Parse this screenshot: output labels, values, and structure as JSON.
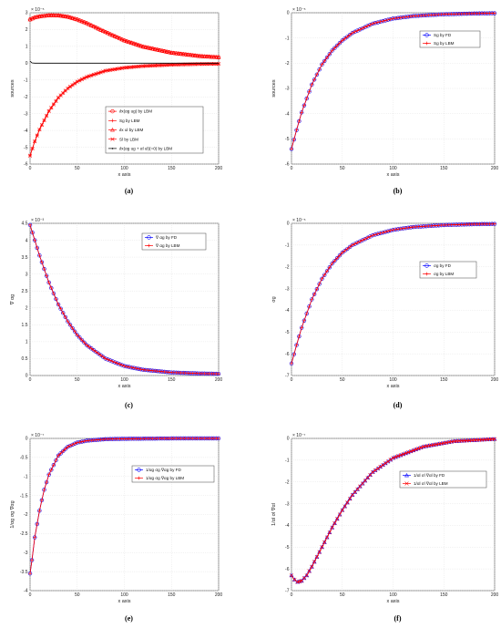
{
  "chart_data": [
    {
      "id": "a",
      "type": "line",
      "caption": "(a)",
      "xlabel": "x axis",
      "ylabel": "sources",
      "exponent": "× 10⁻⁵",
      "xlim": [
        0,
        200
      ],
      "ylim": [
        -6,
        3
      ],
      "xticks": [
        0,
        50,
        100,
        150,
        200
      ],
      "yticks": [
        -6,
        -5,
        -4,
        -3,
        -2,
        -1,
        0,
        1,
        2,
        3
      ],
      "series": [
        {
          "name": "∂x(αg ug) by LBM",
          "color": "#ff0000",
          "marker": "circle",
          "x": [
            0,
            5,
            10,
            20,
            30,
            40,
            50,
            60,
            80,
            100,
            120,
            150,
            180,
            200
          ],
          "y": [
            2.6,
            2.72,
            2.78,
            2.85,
            2.84,
            2.76,
            2.6,
            2.38,
            1.85,
            1.35,
            0.98,
            0.62,
            0.42,
            0.35
          ]
        },
        {
          "name": "Sg by LBM",
          "color": "#ff0000",
          "marker": "plus",
          "x": [
            0,
            5,
            10,
            20,
            30,
            40,
            50,
            60,
            80,
            100,
            120,
            150,
            180,
            200
          ],
          "y": [
            -5.5,
            -4.65,
            -3.95,
            -2.85,
            -2.05,
            -1.5,
            -1.1,
            -0.82,
            -0.45,
            -0.27,
            -0.17,
            -0.09,
            -0.05,
            -0.04
          ]
        },
        {
          "name": "∂x ul by LBM",
          "color": "#ff0000",
          "marker": "triangle",
          "x": [
            0,
            5,
            10,
            20,
            30,
            40,
            50,
            60,
            80,
            100,
            120,
            150,
            180,
            200
          ],
          "y": [
            2.6,
            2.72,
            2.78,
            2.85,
            2.84,
            2.76,
            2.6,
            2.38,
            1.85,
            1.35,
            0.98,
            0.62,
            0.42,
            0.35
          ]
        },
        {
          "name": "Sl by LBM",
          "color": "#ff0000",
          "marker": "cross",
          "x": [
            0,
            5,
            10,
            20,
            30,
            40,
            50,
            60,
            80,
            100,
            120,
            150,
            180,
            200
          ],
          "y": [
            -5.5,
            -4.65,
            -3.95,
            -2.85,
            -2.05,
            -1.5,
            -1.1,
            -0.82,
            -0.45,
            -0.27,
            -0.17,
            -0.09,
            -0.05,
            -0.04
          ]
        },
        {
          "name": "∂x(αg ug + αl ul)(=0) by LBM",
          "color": "#000000",
          "marker": "dot",
          "x": [
            0,
            2,
            5,
            10,
            50,
            100,
            150,
            200
          ],
          "y": [
            0.12,
            0.02,
            0,
            0,
            0,
            0,
            0,
            0
          ]
        }
      ],
      "legend": [
        "∂x(αg ug) by LBM",
        "Sg by LBM",
        "∂x ul by LBM",
        "Sl by LBM",
        "∂x(αg ug + αl ul)(=0) by LBM"
      ],
      "legend_position": "bottom-right"
    },
    {
      "id": "b",
      "type": "line",
      "caption": "(b)",
      "xlabel": "x axis",
      "ylabel": "sources",
      "exponent": "× 10⁻⁵",
      "xlim": [
        0,
        200
      ],
      "ylim": [
        -6,
        0
      ],
      "xticks": [
        0,
        50,
        100,
        150,
        200
      ],
      "yticks": [
        -6,
        -5,
        -4,
        -3,
        -2,
        -1,
        0
      ],
      "series": [
        {
          "name": "Sg by FD",
          "color": "#0000ff",
          "marker": "circle",
          "x": [
            0,
            5,
            10,
            20,
            30,
            40,
            50,
            60,
            80,
            100,
            120,
            150,
            180,
            200
          ],
          "y": [
            -5.4,
            -4.65,
            -3.95,
            -2.85,
            -2.05,
            -1.5,
            -1.1,
            -0.8,
            -0.43,
            -0.23,
            -0.13,
            -0.06,
            -0.03,
            -0.02
          ]
        },
        {
          "name": "Sg by LBM",
          "color": "#ff0000",
          "marker": "plus",
          "x": [
            0,
            5,
            10,
            20,
            30,
            40,
            50,
            60,
            80,
            100,
            120,
            150,
            180,
            200
          ],
          "y": [
            -5.4,
            -4.65,
            -3.95,
            -2.85,
            -2.05,
            -1.5,
            -1.1,
            -0.8,
            -0.43,
            -0.23,
            -0.13,
            -0.06,
            -0.03,
            -0.02
          ]
        }
      ],
      "legend": [
        "Sg by FD",
        "Sg by LBM"
      ],
      "legend_position": "top-right"
    },
    {
      "id": "c",
      "type": "line",
      "caption": "(c)",
      "xlabel": "x axis",
      "ylabel": "∇ αg",
      "exponent": "× 10⁻³",
      "xlim": [
        0,
        200
      ],
      "ylim": [
        0,
        4.5
      ],
      "xticks": [
        0,
        50,
        100,
        150,
        200
      ],
      "yticks": [
        0,
        0.5,
        1,
        1.5,
        2,
        2.5,
        3,
        3.5,
        4,
        4.5
      ],
      "series": [
        {
          "name": "∇ αg by FD",
          "color": "#0000ff",
          "marker": "circle",
          "x": [
            0,
            5,
            10,
            20,
            30,
            40,
            50,
            60,
            80,
            100,
            120,
            150,
            180,
            200
          ],
          "y": [
            4.45,
            4.0,
            3.55,
            2.75,
            2.1,
            1.6,
            1.2,
            0.9,
            0.5,
            0.28,
            0.17,
            0.09,
            0.06,
            0.05
          ]
        },
        {
          "name": "∇ αg by LBM",
          "color": "#ff0000",
          "marker": "plus",
          "x": [
            0,
            5,
            10,
            20,
            30,
            40,
            50,
            60,
            80,
            100,
            120,
            150,
            180,
            200
          ],
          "y": [
            4.45,
            4.0,
            3.55,
            2.75,
            2.1,
            1.6,
            1.2,
            0.9,
            0.5,
            0.28,
            0.17,
            0.09,
            0.06,
            0.05
          ]
        }
      ],
      "legend": [
        "∇ αg by FD",
        "∇ αg by LBM"
      ],
      "legend_position": "top-right"
    },
    {
      "id": "d",
      "type": "line",
      "caption": "(d)",
      "xlabel": "x axis",
      "ylabel": "σg",
      "exponent": "× 10⁻⁵",
      "xlim": [
        0,
        200
      ],
      "ylim": [
        -7,
        0
      ],
      "xticks": [
        0,
        50,
        100,
        150,
        200
      ],
      "yticks": [
        -7,
        -6,
        -5,
        -4,
        -3,
        -2,
        -1,
        0
      ],
      "series": [
        {
          "name": "σg by FD",
          "color": "#0000ff",
          "marker": "circle",
          "x": [
            0,
            5,
            10,
            20,
            30,
            40,
            50,
            60,
            80,
            100,
            120,
            150,
            180,
            200
          ],
          "y": [
            -6.45,
            -5.6,
            -4.8,
            -3.5,
            -2.55,
            -1.85,
            -1.35,
            -1.0,
            -0.55,
            -0.3,
            -0.17,
            -0.08,
            -0.04,
            -0.03
          ]
        },
        {
          "name": "σg by LBM",
          "color": "#ff0000",
          "marker": "plus",
          "x": [
            0,
            5,
            10,
            20,
            30,
            40,
            50,
            60,
            80,
            100,
            120,
            150,
            180,
            200
          ],
          "y": [
            -6.45,
            -5.6,
            -4.8,
            -3.5,
            -2.55,
            -1.85,
            -1.35,
            -1.0,
            -0.55,
            -0.3,
            -0.17,
            -0.08,
            -0.04,
            -0.03
          ]
        }
      ],
      "legend": [
        "σg by FD",
        "σg by LBM"
      ],
      "legend_position": "right"
    },
    {
      "id": "e",
      "type": "line",
      "caption": "(e)",
      "xlabel": "x axis",
      "ylabel": "1/αg σg ∇αg",
      "exponent": "× 10⁻⁷",
      "xlim": [
        0,
        200
      ],
      "ylim": [
        -4,
        0
      ],
      "xticks": [
        0,
        50,
        100,
        150,
        200
      ],
      "yticks": [
        -4,
        -3.5,
        -3,
        -2.5,
        -2,
        -1.5,
        -1,
        -0.5,
        0
      ],
      "series": [
        {
          "name": "1/αg σg ∇αg by FD",
          "color": "#0000ff",
          "marker": "circle",
          "x": [
            0,
            2,
            5,
            10,
            15,
            20,
            30,
            40,
            50,
            60,
            80,
            100,
            150,
            200
          ],
          "y": [
            -3.55,
            -3.2,
            -2.6,
            -1.9,
            -1.35,
            -0.95,
            -0.45,
            -0.22,
            -0.11,
            -0.06,
            -0.02,
            -0.01,
            0,
            0
          ]
        },
        {
          "name": "1/αg σg ∇αg by LBM",
          "color": "#ff0000",
          "marker": "plus",
          "x": [
            0,
            2,
            5,
            10,
            15,
            20,
            30,
            40,
            50,
            60,
            80,
            100,
            150,
            200
          ],
          "y": [
            -3.55,
            -3.2,
            -2.6,
            -1.9,
            -1.35,
            -0.95,
            -0.45,
            -0.22,
            -0.11,
            -0.06,
            -0.02,
            -0.01,
            0,
            0
          ]
        }
      ],
      "legend": [
        "1/αg σg ∇αg by FD",
        "1/αg σg ∇αg by LBM"
      ],
      "legend_position": "right"
    },
    {
      "id": "f",
      "type": "line",
      "caption": "(f)",
      "xlabel": "x axis",
      "ylabel": "1/αl σl ∇αl",
      "exponent": "× 10⁻⁷",
      "xlim": [
        0,
        200
      ],
      "ylim": [
        -7,
        0
      ],
      "xticks": [
        0,
        50,
        100,
        150,
        200
      ],
      "yticks": [
        -7,
        -6,
        -5,
        -4,
        -3,
        -2,
        -1,
        0
      ],
      "series": [
        {
          "name": "1/αl σl ∇αl by FD",
          "color": "#0000ff",
          "marker": "triangle",
          "x": [
            0,
            3,
            6,
            10,
            15,
            20,
            30,
            40,
            50,
            60,
            80,
            100,
            130,
            160,
            200
          ],
          "y": [
            -6.3,
            -6.5,
            -6.6,
            -6.55,
            -6.3,
            -5.9,
            -5.0,
            -4.1,
            -3.3,
            -2.6,
            -1.55,
            -0.9,
            -0.38,
            -0.13,
            -0.03
          ]
        },
        {
          "name": "1/αl σl ∇αl by LBM",
          "color": "#ff0000",
          "marker": "cross",
          "x": [
            0,
            3,
            6,
            10,
            15,
            20,
            30,
            40,
            50,
            60,
            80,
            100,
            130,
            160,
            200
          ],
          "y": [
            -6.3,
            -6.5,
            -6.6,
            -6.55,
            -6.3,
            -5.9,
            -5.0,
            -4.1,
            -3.3,
            -2.6,
            -1.55,
            -0.9,
            -0.38,
            -0.13,
            -0.03
          ]
        }
      ],
      "legend": [
        "1/αl σl ∇αl by FD",
        "1/αl σl ∇αl by LBM"
      ],
      "legend_position": "right"
    }
  ]
}
